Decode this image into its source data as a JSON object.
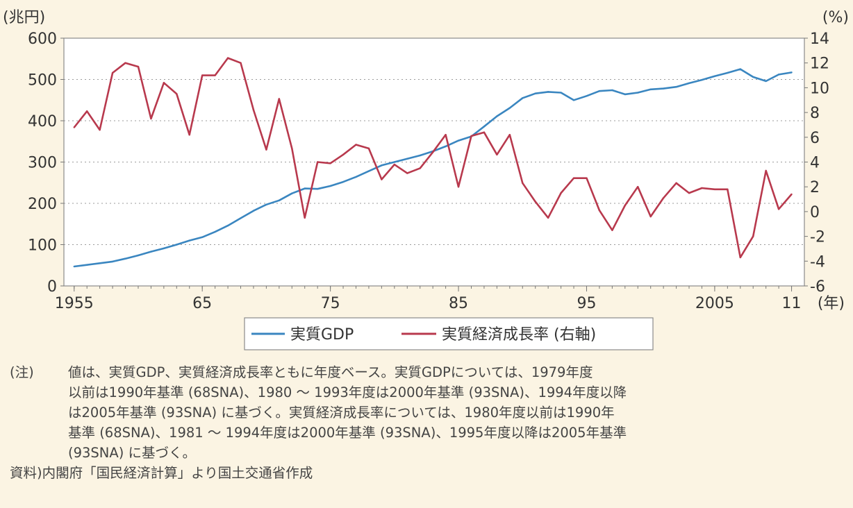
{
  "chart_data": {
    "type": "line",
    "y_unit_left": "(兆円)",
    "y_unit_right": "(%)",
    "x_unit": "(年)",
    "x_tick_labels": [
      {
        "x": 1955,
        "label": "1955"
      },
      {
        "x": 1965,
        "label": "65"
      },
      {
        "x": 1975,
        "label": "75"
      },
      {
        "x": 1985,
        "label": "85"
      },
      {
        "x": 1995,
        "label": "95"
      },
      {
        "x": 2005,
        "label": "2005"
      },
      {
        "x": 2011,
        "label": "11"
      }
    ],
    "y_left_ticks": [
      "0",
      "100",
      "200",
      "300",
      "400",
      "500",
      "600"
    ],
    "y_right_ticks": [
      "-6",
      "-4",
      "-2",
      "0",
      "2",
      "4",
      "6",
      "8",
      "10",
      "12",
      "14"
    ],
    "ylim_left": [
      0,
      600
    ],
    "ylim_right": [
      -6,
      14
    ],
    "xlim": [
      1954.2,
      2012.0
    ],
    "grid": "horizontal dotted",
    "legend_position": "bottom-center",
    "series": [
      {
        "name": "実質GDP",
        "axis": "left",
        "color": "#3a86c0",
        "x": [
          1955,
          1956,
          1957,
          1958,
          1959,
          1960,
          1961,
          1962,
          1963,
          1964,
          1965,
          1966,
          1967,
          1968,
          1969,
          1970,
          1971,
          1972,
          1973,
          1974,
          1975,
          1976,
          1977,
          1978,
          1979,
          1980,
          1981,
          1982,
          1983,
          1984,
          1985,
          1986,
          1987,
          1988,
          1989,
          1990,
          1991,
          1992,
          1993,
          1994,
          1995,
          1996,
          1997,
          1998,
          1999,
          2000,
          2001,
          2002,
          2003,
          2004,
          2005,
          2006,
          2007,
          2008,
          2009,
          2010,
          2011
        ],
        "values": [
          47,
          51,
          55,
          59,
          66,
          74,
          83,
          91,
          100,
          110,
          118,
          131,
          146,
          164,
          182,
          197,
          207,
          224,
          236,
          235,
          242,
          252,
          264,
          278,
          292,
          300,
          308,
          316,
          326,
          338,
          352,
          362,
          386,
          411,
          431,
          455,
          466,
          470,
          468,
          450,
          460,
          472,
          474,
          464,
          468,
          476,
          478,
          482,
          491,
          499,
          508,
          516,
          525,
          506,
          496,
          512,
          517
        ]
      },
      {
        "name": "実質経済成長率 (右軸)",
        "axis": "right",
        "color": "#b8394d",
        "x": [
          1955,
          1956,
          1957,
          1958,
          1959,
          1960,
          1961,
          1962,
          1963,
          1964,
          1965,
          1966,
          1967,
          1968,
          1969,
          1970,
          1971,
          1972,
          1973,
          1974,
          1975,
          1976,
          1977,
          1978,
          1979,
          1980,
          1981,
          1982,
          1983,
          1984,
          1985,
          1986,
          1987,
          1988,
          1989,
          1990,
          1991,
          1992,
          1993,
          1994,
          1995,
          1996,
          1997,
          1998,
          1999,
          2000,
          2001,
          2002,
          2003,
          2004,
          2005,
          2006,
          2007,
          2008,
          2009,
          2010,
          2011
        ],
        "values": [
          6.8,
          8.1,
          6.6,
          11.2,
          12.0,
          11.7,
          7.5,
          10.4,
          9.5,
          6.2,
          11.0,
          11.0,
          12.4,
          12.0,
          8.2,
          5.0,
          9.1,
          5.1,
          -0.5,
          4.0,
          3.9,
          4.6,
          5.4,
          5.1,
          2.6,
          3.8,
          3.1,
          3.5,
          4.8,
          6.2,
          2.0,
          6.1,
          6.4,
          4.6,
          6.2,
          2.3,
          0.8,
          -0.5,
          1.5,
          2.7,
          2.7,
          0.1,
          -1.5,
          0.5,
          2.0,
          -0.4,
          1.1,
          2.3,
          1.5,
          1.9,
          1.8,
          1.8,
          -3.7,
          -2.0,
          3.3,
          0.2,
          1.4
        ]
      }
    ]
  },
  "notes": {
    "note_tag": "(注)",
    "note_text": "値は、実質GDP、実質経済成長率ともに年度ベース。実質GDPについては、1979年度\n以前は1990年基準 (68SNA)、1980 ～ 1993年度は2000年基準 (93SNA)、1994年度以降\nは2005年基準 (93SNA) に基づく。実質経済成長率については、1980年度以前は1990年\n基準 (68SNA)、1981 ～ 1994年度は2000年基準 (93SNA)、1995年度以降は2005年基準\n(93SNA) に基づく。",
    "source_tag": "資料)",
    "source_text": "内閣府「国民経済計算」より国土交通省作成"
  }
}
